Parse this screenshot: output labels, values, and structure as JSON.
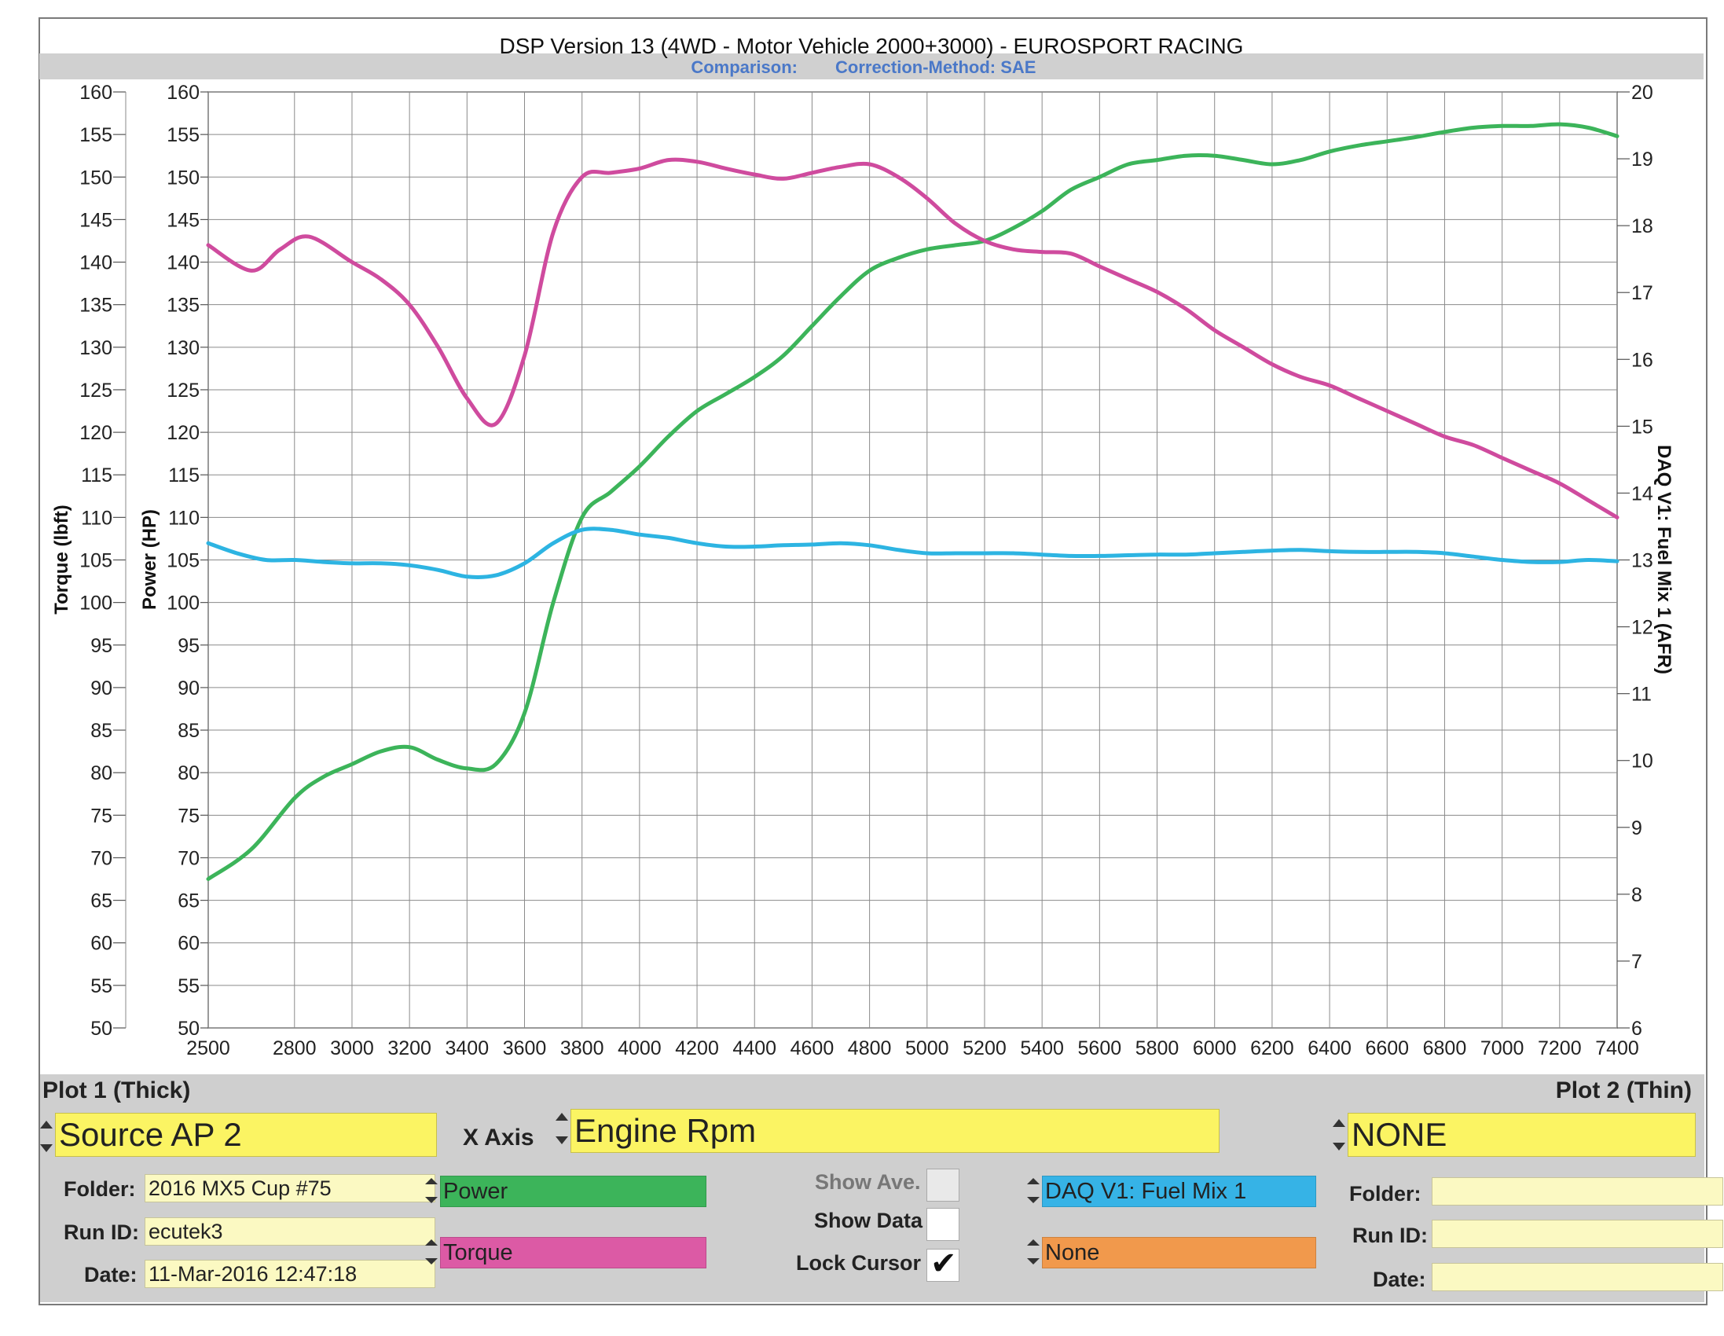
{
  "chart_data": {
    "type": "line",
    "title": "DSP Version 13 (4WD - Motor Vehicle 2000+3000) - EUROSPORT RACING",
    "subtitle": {
      "comparison_label": "Comparison:",
      "correction_method": "Correction-Method: SAE"
    },
    "x_axis": {
      "label": "",
      "range": [
        2500,
        7400
      ],
      "ticks": [
        2500,
        2800,
        3000,
        3200,
        3400,
        3600,
        3800,
        4000,
        4200,
        4400,
        4600,
        4800,
        5000,
        5200,
        5400,
        5600,
        5800,
        6000,
        6200,
        6400,
        6600,
        6800,
        7000,
        7200,
        7400
      ]
    },
    "y_axes": [
      {
        "id": "torque",
        "label": "Torque (lbft)",
        "range": [
          50,
          160
        ],
        "tick_step": 5
      },
      {
        "id": "power",
        "label": "Power (HP)",
        "range": [
          50,
          160
        ],
        "tick_step": 5
      },
      {
        "id": "afr",
        "label": "DAQ V1: Fuel Mix 1 (AFR)",
        "range": [
          6,
          20
        ],
        "tick_step": 1
      }
    ],
    "grid": true,
    "series": [
      {
        "name": "Power",
        "axis": "power",
        "color": "#3cb45a",
        "points": [
          [
            2500,
            67.5
          ],
          [
            2650,
            71
          ],
          [
            2800,
            77
          ],
          [
            2900,
            79.5
          ],
          [
            3000,
            81
          ],
          [
            3100,
            82.5
          ],
          [
            3200,
            83
          ],
          [
            3300,
            81.5
          ],
          [
            3400,
            80.5
          ],
          [
            3500,
            81
          ],
          [
            3600,
            87
          ],
          [
            3700,
            100
          ],
          [
            3800,
            110
          ],
          [
            3900,
            113
          ],
          [
            4000,
            116
          ],
          [
            4100,
            119.5
          ],
          [
            4200,
            122.5
          ],
          [
            4300,
            124.5
          ],
          [
            4400,
            126.5
          ],
          [
            4500,
            129
          ],
          [
            4600,
            132.5
          ],
          [
            4700,
            136
          ],
          [
            4800,
            139
          ],
          [
            4900,
            140.5
          ],
          [
            5000,
            141.5
          ],
          [
            5100,
            142
          ],
          [
            5200,
            142.5
          ],
          [
            5300,
            144
          ],
          [
            5400,
            146
          ],
          [
            5500,
            148.5
          ],
          [
            5600,
            150
          ],
          [
            5700,
            151.5
          ],
          [
            5800,
            152
          ],
          [
            5900,
            152.5
          ],
          [
            6000,
            152.5
          ],
          [
            6100,
            152
          ],
          [
            6200,
            151.5
          ],
          [
            6300,
            152
          ],
          [
            6400,
            153
          ],
          [
            6500,
            153.7
          ],
          [
            6600,
            154.2
          ],
          [
            6700,
            154.7
          ],
          [
            6800,
            155.3
          ],
          [
            6900,
            155.8
          ],
          [
            7000,
            156
          ],
          [
            7100,
            156
          ],
          [
            7200,
            156.2
          ],
          [
            7300,
            155.8
          ],
          [
            7400,
            154.8
          ]
        ]
      },
      {
        "name": "Torque",
        "axis": "torque",
        "color": "#cf4b9e",
        "points": [
          [
            2500,
            142
          ],
          [
            2650,
            139
          ],
          [
            2750,
            141.5
          ],
          [
            2850,
            143
          ],
          [
            3000,
            140
          ],
          [
            3100,
            138
          ],
          [
            3200,
            135
          ],
          [
            3300,
            130
          ],
          [
            3400,
            124
          ],
          [
            3500,
            121
          ],
          [
            3600,
            129
          ],
          [
            3700,
            143.5
          ],
          [
            3800,
            150
          ],
          [
            3900,
            150.5
          ],
          [
            4000,
            151
          ],
          [
            4100,
            152
          ],
          [
            4200,
            151.8
          ],
          [
            4300,
            151
          ],
          [
            4400,
            150.3
          ],
          [
            4500,
            149.8
          ],
          [
            4600,
            150.5
          ],
          [
            4700,
            151.2
          ],
          [
            4800,
            151.5
          ],
          [
            4900,
            150
          ],
          [
            5000,
            147.5
          ],
          [
            5100,
            144.5
          ],
          [
            5200,
            142.5
          ],
          [
            5300,
            141.5
          ],
          [
            5400,
            141.2
          ],
          [
            5500,
            141
          ],
          [
            5600,
            139.5
          ],
          [
            5700,
            138
          ],
          [
            5800,
            136.5
          ],
          [
            5900,
            134.5
          ],
          [
            6000,
            132
          ],
          [
            6100,
            130
          ],
          [
            6200,
            128
          ],
          [
            6300,
            126.5
          ],
          [
            6400,
            125.5
          ],
          [
            6500,
            124
          ],
          [
            6600,
            122.5
          ],
          [
            6700,
            121
          ],
          [
            6800,
            119.5
          ],
          [
            6900,
            118.5
          ],
          [
            7000,
            117
          ],
          [
            7100,
            115.5
          ],
          [
            7200,
            114
          ],
          [
            7300,
            112
          ],
          [
            7400,
            110
          ]
        ]
      },
      {
        "name": "DAQ V1: Fuel Mix 1",
        "axis": "afr",
        "color": "#2db4e2",
        "points": [
          [
            2500,
            13.25
          ],
          [
            2600,
            13.1
          ],
          [
            2700,
            13.0
          ],
          [
            2800,
            13.0
          ],
          [
            2900,
            12.97
          ],
          [
            3000,
            12.95
          ],
          [
            3100,
            12.95
          ],
          [
            3200,
            12.92
          ],
          [
            3300,
            12.85
          ],
          [
            3400,
            12.75
          ],
          [
            3500,
            12.77
          ],
          [
            3600,
            12.95
          ],
          [
            3700,
            13.25
          ],
          [
            3800,
            13.45
          ],
          [
            3900,
            13.45
          ],
          [
            4000,
            13.38
          ],
          [
            4100,
            13.33
          ],
          [
            4200,
            13.25
          ],
          [
            4300,
            13.2
          ],
          [
            4400,
            13.2
          ],
          [
            4500,
            13.22
          ],
          [
            4600,
            13.23
          ],
          [
            4700,
            13.25
          ],
          [
            4800,
            13.22
          ],
          [
            4900,
            13.15
          ],
          [
            5000,
            13.1
          ],
          [
            5100,
            13.1
          ],
          [
            5200,
            13.1
          ],
          [
            5300,
            13.1
          ],
          [
            5400,
            13.08
          ],
          [
            5500,
            13.06
          ],
          [
            5600,
            13.06
          ],
          [
            5700,
            13.07
          ],
          [
            5800,
            13.08
          ],
          [
            5900,
            13.08
          ],
          [
            6000,
            13.1
          ],
          [
            6100,
            13.12
          ],
          [
            6200,
            13.14
          ],
          [
            6300,
            13.15
          ],
          [
            6400,
            13.13
          ],
          [
            6500,
            13.12
          ],
          [
            6600,
            13.12
          ],
          [
            6700,
            13.12
          ],
          [
            6800,
            13.1
          ],
          [
            6900,
            13.05
          ],
          [
            7000,
            13.0
          ],
          [
            7100,
            12.97
          ],
          [
            7200,
            12.97
          ],
          [
            7300,
            13.0
          ],
          [
            7400,
            12.98
          ]
        ]
      }
    ]
  },
  "panel": {
    "plot1": {
      "header": "Plot 1 (Thick)",
      "source": "Source AP 2",
      "folder_label": "Folder:",
      "folder_value": "2016 MX5 Cup #75",
      "run_id_label": "Run ID:",
      "run_id_value": "ecutek3",
      "date_label": "Date:",
      "date_value": "11-Mar-2016 12:47:18"
    },
    "x_axis": {
      "label": "X Axis",
      "value": "Engine Rpm"
    },
    "channels": [
      {
        "label": "Power",
        "color": "#3cb45a"
      },
      {
        "label": "Torque",
        "color": "#dc5aa5"
      },
      {
        "label": "DAQ V1: Fuel Mix 1",
        "color": "#36b3e6"
      },
      {
        "label": "None",
        "color": "#f1994c"
      }
    ],
    "options": {
      "show_ave": {
        "label": "Show Ave.",
        "checked": false,
        "enabled": false
      },
      "show_data": {
        "label": "Show Data",
        "checked": false,
        "enabled": true
      },
      "lock_cursor": {
        "label": "Lock Cursor",
        "checked": true,
        "enabled": true
      }
    },
    "plot2": {
      "header": "Plot 2 (Thin)",
      "source": "NONE",
      "folder_label": "Folder:",
      "folder_value": "",
      "run_id_label": "Run ID:",
      "run_id_value": "",
      "date_label": "Date:",
      "date_value": ""
    }
  }
}
